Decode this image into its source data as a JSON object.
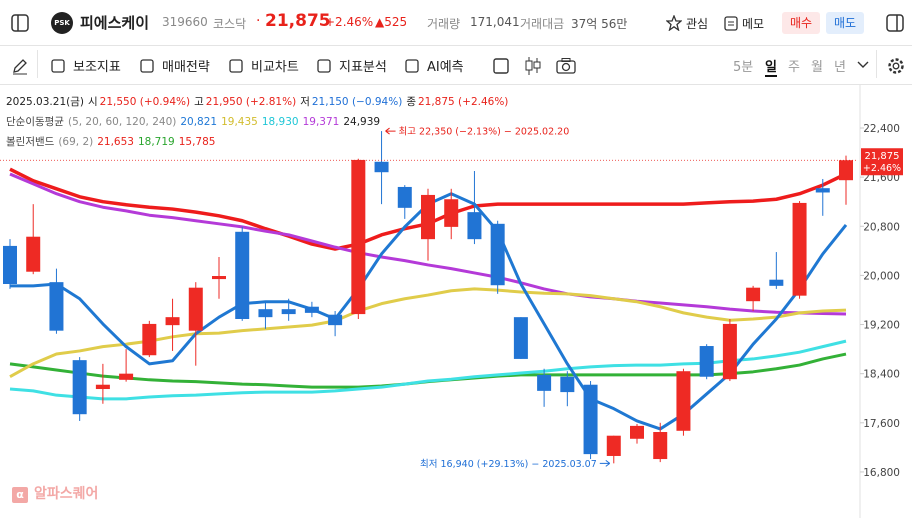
{
  "header": {
    "logo": "PSK",
    "name": "피에스케이",
    "code": "319660",
    "market": "코스닥",
    "price": "21,875",
    "change_pct": "+2.46%",
    "change": "▲525",
    "volume_label": "거래량",
    "volume": "171,041",
    "amount_label": "거래대금",
    "amount": "37억 56만",
    "watch": "관심",
    "memo": "메모",
    "buy": "매수",
    "sell": "매도"
  },
  "toolbar": {
    "tools": [
      "보조지표",
      "매매전략",
      "비교차트",
      "지표분석",
      "AI예측"
    ],
    "periods": [
      "5분",
      "일",
      "주",
      "월",
      "년"
    ],
    "active_period": 1
  },
  "watermark": "알파스퀘어",
  "chart_data": {
    "type": "candlestick",
    "up_color": "#ee2a24",
    "down_color": "#2174d4",
    "ylim": [
      16050,
      23100
    ],
    "yticks": [
      {
        "value": 22400,
        "label": "22,400"
      },
      {
        "value": 21600,
        "label": "21,600"
      },
      {
        "value": 20800,
        "label": "20,800"
      },
      {
        "value": 20000,
        "label": "20,000"
      },
      {
        "value": 19200,
        "label": "19,200"
      },
      {
        "value": 18400,
        "label": "18,400"
      },
      {
        "value": 17600,
        "label": "17,600"
      },
      {
        "value": 16800,
        "label": "16,800"
      }
    ],
    "grid": false,
    "info": [
      {
        "title": "2025.03.21(금)",
        "items": [
          {
            "label": "시",
            "value": "21,550 (+0.94%)",
            "color": "#e8221b"
          },
          {
            "label": "고",
            "value": "21,950 (+2.81%)",
            "color": "#e8221b"
          },
          {
            "label": "저",
            "value": "21,150 (−0.94%)",
            "color": "#1f6fd6"
          },
          {
            "label": "종",
            "value": "21,875 (+2.46%)",
            "color": "#e8221b"
          }
        ]
      },
      {
        "title": "단순이동평균",
        "params": "(5, 20, 60, 120, 240)",
        "items": [
          {
            "value": "20,821",
            "color": "#1f78d6"
          },
          {
            "value": "19,435",
            "color": "#d2bc2c"
          },
          {
            "value": "18,930",
            "color": "#1fc6d6"
          },
          {
            "value": "19,371",
            "color": "#b43ad8"
          },
          {
            "value": "24,939",
            "color": "#222222"
          }
        ]
      },
      {
        "title": "볼린저밴드",
        "params": "(69, 2)",
        "items": [
          {
            "value": "21,653",
            "color": "#e8221b"
          },
          {
            "value": "18,719",
            "color": "#2aa52e"
          },
          {
            "value": "15,785",
            "color": "#e8221b"
          }
        ]
      }
    ],
    "candles": {
      "open": [
        20480,
        20060,
        19890,
        18620,
        18150,
        18300,
        18700,
        19190,
        19100,
        19940,
        20710,
        19450,
        19450,
        19490,
        19360,
        19370,
        21850,
        21440,
        20590,
        20790,
        21030,
        20840,
        19320,
        18380,
        18350,
        18220,
        17060,
        17340,
        17010,
        17470,
        18850,
        18310,
        19580,
        19930,
        19670,
        21420,
        21550
      ],
      "high": [
        20590,
        21160,
        20110,
        18670,
        18560,
        18800,
        19260,
        19620,
        19890,
        20300,
        20790,
        19570,
        19620,
        19570,
        19420,
        21900,
        22350,
        21470,
        21410,
        21410,
        21700,
        20890,
        19320,
        18480,
        18440,
        18280,
        17390,
        17580,
        17600,
        18480,
        18880,
        19290,
        19830,
        20380,
        21210,
        21570,
        21950
      ],
      "low": [
        19780,
        20020,
        19050,
        17630,
        17910,
        18270,
        18670,
        18770,
        18530,
        19620,
        19260,
        19130,
        19260,
        19320,
        19010,
        19290,
        21160,
        20920,
        20240,
        20590,
        20510,
        19700,
        18640,
        17860,
        17870,
        17010,
        16940,
        17260,
        16960,
        17390,
        18310,
        18280,
        19420,
        19780,
        19620,
        20970,
        21150
      ],
      "close": [
        19860,
        20630,
        19100,
        17740,
        18220,
        18400,
        19210,
        19320,
        19800,
        19990,
        19290,
        19320,
        19370,
        19390,
        19190,
        21880,
        21680,
        21100,
        21310,
        21240,
        20590,
        19840,
        18640,
        18120,
        18100,
        17090,
        17390,
        17550,
        17450,
        18440,
        18350,
        19210,
        19800,
        19830,
        21180,
        21350,
        21875
      ]
    },
    "series": [
      {
        "color": "#ee1c1c",
        "width": 3.5,
        "values": [
          21730,
          21540,
          21410,
          21280,
          21200,
          21150,
          21110,
          21080,
          21030,
          20970,
          20890,
          20760,
          20640,
          20510,
          20430,
          20510,
          20660,
          20760,
          20840,
          21010,
          21130,
          21160,
          21160,
          21160,
          21160,
          21160,
          21160,
          21160,
          21160,
          21160,
          21180,
          21200,
          21210,
          21240,
          21330,
          21470,
          21653
        ]
      },
      {
        "color": "#33b137",
        "width": 3,
        "values": [
          18560,
          18510,
          18460,
          18410,
          18360,
          18330,
          18300,
          18280,
          18270,
          18250,
          18230,
          18220,
          18200,
          18180,
          18180,
          18180,
          18200,
          18230,
          18270,
          18300,
          18330,
          18360,
          18380,
          18380,
          18380,
          18380,
          18380,
          18380,
          18380,
          18380,
          18380,
          18400,
          18430,
          18480,
          18540,
          18640,
          18719
        ]
      },
      {
        "color": "#3fe0e4",
        "width": 3,
        "values": [
          18150,
          18120,
          18050,
          18020,
          17990,
          17990,
          18020,
          18040,
          18050,
          18070,
          18090,
          18100,
          18100,
          18100,
          18120,
          18150,
          18180,
          18230,
          18280,
          18310,
          18350,
          18380,
          18410,
          18440,
          18480,
          18510,
          18530,
          18540,
          18540,
          18560,
          18570,
          18610,
          18640,
          18690,
          18750,
          18840,
          18930
        ]
      },
      {
        "color": "#b43ad8",
        "width": 3,
        "values": [
          21650,
          21490,
          21330,
          21200,
          21110,
          21050,
          20980,
          20940,
          20890,
          20840,
          20790,
          20720,
          20660,
          20560,
          20460,
          20370,
          20300,
          20240,
          20170,
          20110,
          20040,
          19970,
          19880,
          19780,
          19700,
          19650,
          19620,
          19580,
          19550,
          19520,
          19490,
          19450,
          19420,
          19400,
          19390,
          19380,
          19371
        ]
      },
      {
        "color": "#e0cc4a",
        "width": 3,
        "values": [
          18350,
          18560,
          18720,
          18770,
          18840,
          18880,
          18930,
          19000,
          19050,
          19060,
          19100,
          19130,
          19160,
          19190,
          19260,
          19420,
          19540,
          19620,
          19680,
          19750,
          19780,
          19760,
          19730,
          19710,
          19700,
          19670,
          19620,
          19570,
          19490,
          19390,
          19320,
          19270,
          19290,
          19320,
          19390,
          19420,
          19435
        ]
      },
      {
        "color": "#1f78d2",
        "width": 3,
        "values": [
          19830,
          19830,
          19860,
          19620,
          19210,
          18840,
          18560,
          18610,
          19050,
          19320,
          19540,
          19570,
          19570,
          19450,
          19290,
          19780,
          20350,
          20790,
          21160,
          21330,
          21160,
          20720,
          19860,
          19210,
          18560,
          17990,
          17830,
          17630,
          17500,
          17740,
          18070,
          18400,
          18880,
          19290,
          19780,
          20350,
          20821
        ]
      }
    ],
    "high_note": "최고 22,350 (−2.13%) − 2025.02.20",
    "low_note": "최저 16,940 (+29.13%) − 2025.03.07",
    "last_price": {
      "value": 21875,
      "label": "21,875",
      "change": "+2.46%"
    }
  }
}
